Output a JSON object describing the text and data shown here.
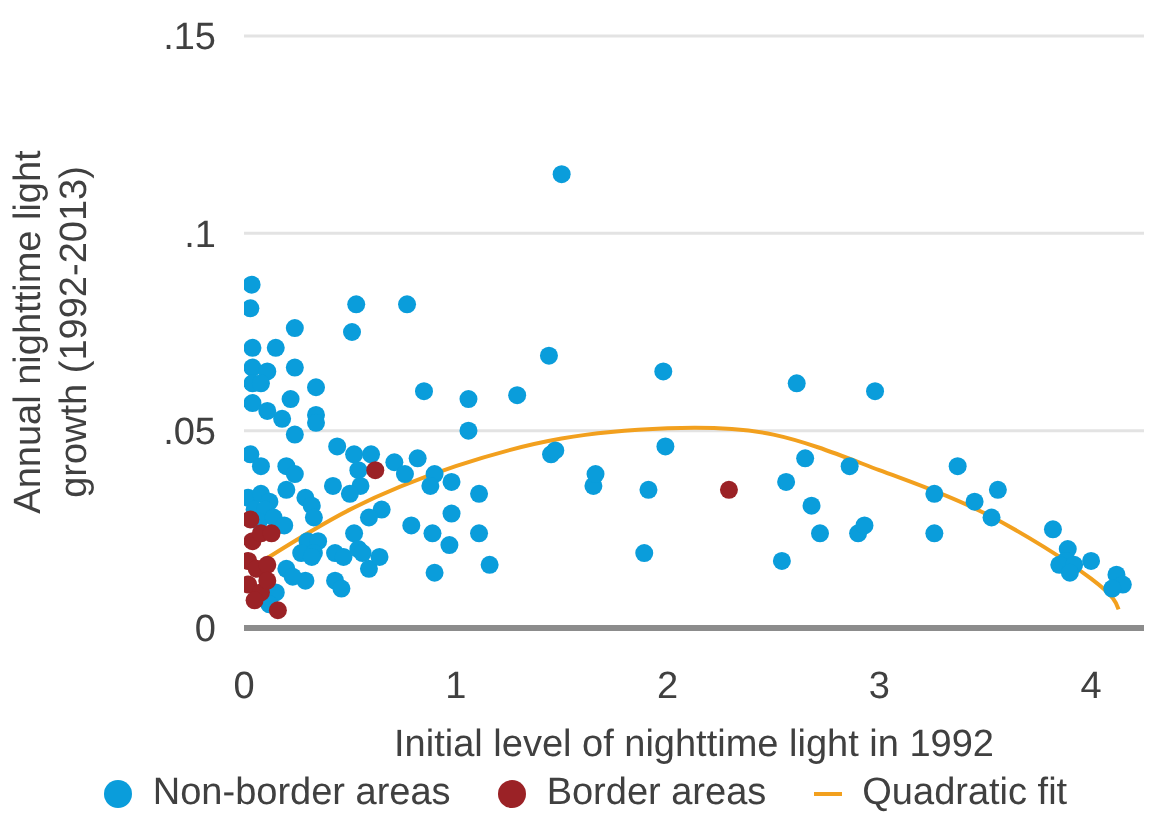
{
  "chart_data": {
    "type": "scatter",
    "xlabel": "Initial level of nighttime light in 1992",
    "ylabel": "Annual nighttime light growth (1992-2013)",
    "xlim": [
      0,
      4.25
    ],
    "xticks": [
      0,
      1,
      2,
      3,
      4
    ],
    "ylim": [
      0,
      0.15
    ],
    "yticks": [
      {
        "value": 0,
        "label": "0"
      },
      {
        "value": 0.05,
        "label": ".05"
      },
      {
        "value": 0.1,
        "label": ".1"
      },
      {
        "value": 0.15,
        "label": ".15"
      }
    ],
    "grid": "y",
    "legend": "bottom",
    "marker": "circle",
    "series": [
      {
        "name": "Non-border areas",
        "color": "#0a9ddb",
        "x": [
          0.036,
          0.03,
          0.53,
          0.77,
          1.5,
          0.24,
          0.51,
          0.04,
          0.15,
          1.44,
          0.04,
          0.11,
          0.24,
          1.98,
          0.04,
          0.08,
          0.34,
          0.85,
          1.06,
          1.29,
          0.22,
          0.04,
          0.11,
          0.18,
          0.34,
          0.34,
          0.24,
          1.06,
          1.45,
          1.47,
          1.99,
          0.44,
          0.52,
          0.6,
          0.03,
          0.08,
          0.2,
          0.24,
          0.71,
          0.82,
          0.54,
          0.55,
          0.76,
          0.9,
          0.88,
          0.98,
          1.65,
          1.66,
          1.91,
          0.02,
          0.08,
          0.12,
          0.05,
          0.1,
          0.07,
          0.14,
          0.19,
          0.2,
          0.29,
          0.32,
          0.33,
          0.42,
          0.5,
          1.11,
          0.98,
          0.65,
          0.59,
          0.79,
          0.89,
          1.11,
          0.52,
          0.3,
          0.35,
          0.27,
          0.33,
          0.43,
          0.47,
          0.54,
          0.56,
          0.97,
          1.89,
          0.59,
          0.64,
          0.32,
          0.9,
          1.16,
          0.43,
          0.46,
          0.29,
          0.15,
          0.12,
          0.2,
          0.23,
          2.61,
          2.98,
          2.56,
          2.65,
          2.68,
          2.72,
          2.54,
          2.86,
          2.9,
          2.93,
          3.26,
          3.26,
          3.37,
          3.45,
          3.56,
          3.53,
          3.82,
          3.89,
          3.88,
          3.85,
          3.92,
          3.9,
          4.0,
          4.12,
          4.15,
          4.1
        ],
        "values": [
          0.087,
          0.081,
          0.082,
          0.082,
          0.115,
          0.076,
          0.075,
          0.071,
          0.071,
          0.069,
          0.066,
          0.065,
          0.066,
          0.065,
          0.062,
          0.062,
          0.061,
          0.06,
          0.058,
          0.059,
          0.058,
          0.057,
          0.055,
          0.053,
          0.054,
          0.052,
          0.049,
          0.05,
          0.044,
          0.045,
          0.046,
          0.046,
          0.044,
          0.044,
          0.044,
          0.041,
          0.041,
          0.039,
          0.042,
          0.043,
          0.04,
          0.036,
          0.039,
          0.039,
          0.036,
          0.037,
          0.036,
          0.039,
          0.035,
          0.033,
          0.034,
          0.032,
          0.03,
          0.03,
          0.027,
          0.028,
          0.026,
          0.035,
          0.033,
          0.031,
          0.028,
          0.036,
          0.034,
          0.034,
          0.029,
          0.03,
          0.028,
          0.026,
          0.024,
          0.024,
          0.024,
          0.022,
          0.022,
          0.019,
          0.019,
          0.019,
          0.018,
          0.02,
          0.019,
          0.021,
          0.019,
          0.015,
          0.018,
          0.018,
          0.014,
          0.016,
          0.012,
          0.01,
          0.012,
          0.009,
          0.006,
          0.015,
          0.013,
          0.062,
          0.06,
          0.037,
          0.043,
          0.031,
          0.024,
          0.017,
          0.041,
          0.024,
          0.026,
          0.034,
          0.024,
          0.041,
          0.032,
          0.035,
          0.028,
          0.025,
          0.02,
          0.017,
          0.016,
          0.016,
          0.014,
          0.017,
          0.0135,
          0.011,
          0.01
        ]
      },
      {
        "name": "Border areas",
        "color": "#9b2226",
        "x": [
          2.29,
          0.62,
          0.16,
          0.03,
          0.04,
          0.08,
          0.13,
          0.02,
          0.06,
          0.11,
          0.02,
          0.08,
          0.05,
          0.11
        ],
        "values": [
          0.035,
          0.04,
          0.0045,
          0.0275,
          0.022,
          0.024,
          0.024,
          0.017,
          0.015,
          0.016,
          0.011,
          0.009,
          0.007,
          0.012
        ]
      },
      {
        "name": "Quadratic fit",
        "type": "line",
        "marker": "none",
        "color": "#f2a01e",
        "x": [
          0.03,
          0.5,
          1,
          1.5,
          2,
          2.5,
          3,
          3.5,
          4,
          4.13
        ],
        "values": [
          0.015,
          0.03,
          0.041,
          0.048,
          0.0506,
          0.049,
          0.04,
          0.029,
          0.0125,
          0.0047
        ]
      }
    ]
  }
}
